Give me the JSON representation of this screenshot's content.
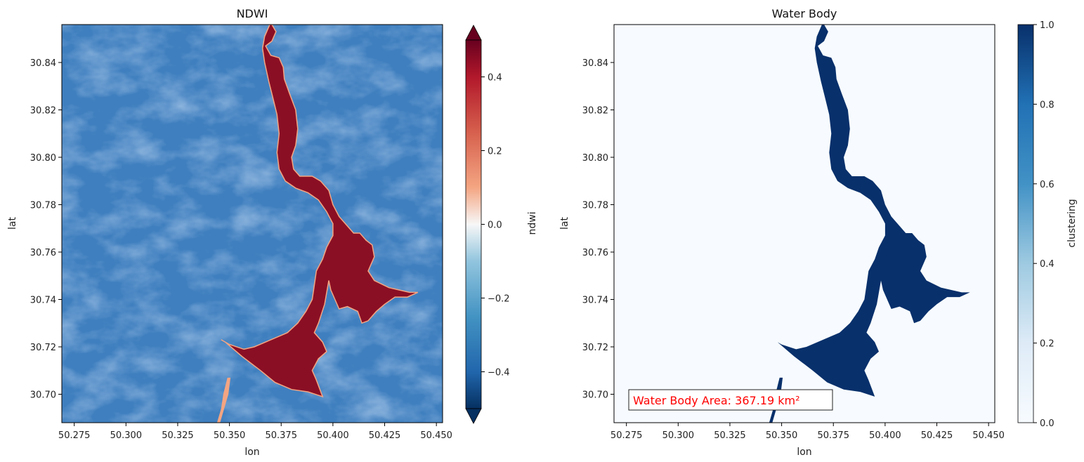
{
  "chart_data": [
    {
      "type": "heatmap",
      "title": "NDWI",
      "xlabel": "lon",
      "ylabel": "lat",
      "xlim": [
        50.269,
        50.453
      ],
      "ylim": [
        30.688,
        30.856
      ],
      "xticks": [
        50.275,
        50.3,
        50.325,
        50.35,
        50.375,
        50.4,
        50.425,
        50.45
      ],
      "xtick_labels": [
        "50.275",
        "50.300",
        "50.325",
        "50.350",
        "50.375",
        "50.400",
        "50.425",
        "50.450"
      ],
      "yticks": [
        30.7,
        30.72,
        30.74,
        30.76,
        30.78,
        30.8,
        30.82,
        30.84
      ],
      "ytick_labels": [
        "30.70",
        "30.72",
        "30.74",
        "30.76",
        "30.78",
        "30.80",
        "30.82",
        "30.84"
      ],
      "colormap": "RdBu",
      "colors": {
        "low": "#053061",
        "mid": "#f7f7f7",
        "high": "#67001f",
        "background": "#3f7fbf",
        "water": "#8b0f24"
      },
      "colorbar": {
        "label": "ndwi",
        "range": [
          -0.5,
          0.5
        ],
        "extend": "both",
        "ticks": [
          -0.4,
          -0.2,
          0.0,
          0.2,
          0.4
        ],
        "tick_labels": [
          "−0.4",
          "−0.2",
          "0.0",
          "0.2",
          "0.4"
        ]
      }
    },
    {
      "type": "heatmap",
      "title": "Water Body",
      "xlabel": "lon",
      "ylabel": "lat",
      "xlim": [
        50.269,
        50.453
      ],
      "ylim": [
        30.688,
        30.856
      ],
      "xticks": [
        50.275,
        50.3,
        50.325,
        50.35,
        50.375,
        50.4,
        50.425,
        50.45
      ],
      "xtick_labels": [
        "50.275",
        "50.300",
        "50.325",
        "50.350",
        "50.375",
        "50.400",
        "50.425",
        "50.450"
      ],
      "yticks": [
        30.7,
        30.72,
        30.74,
        30.76,
        30.78,
        30.8,
        30.82,
        30.84
      ],
      "ytick_labels": [
        "30.70",
        "30.72",
        "30.74",
        "30.76",
        "30.78",
        "30.80",
        "30.82",
        "30.84"
      ],
      "colormap": "Blues",
      "colors": {
        "low": "#f7fbff",
        "high": "#08306b",
        "background": "#f7fbff",
        "water": "#08306b"
      },
      "colorbar": {
        "label": "clustering",
        "range": [
          0.0,
          1.0
        ],
        "ticks": [
          0.0,
          0.2,
          0.4,
          0.6,
          0.8,
          1.0
        ],
        "tick_labels": [
          "0.0",
          "0.2",
          "0.4",
          "0.6",
          "0.8",
          "1.0"
        ]
      },
      "annotation": {
        "text": "Water Body Area: 367.19 km²",
        "color": "#ff0000"
      }
    }
  ],
  "water_body_outline": {
    "main_channel": [
      [
        50.3705,
        30.856
      ],
      [
        50.3725,
        30.853
      ],
      [
        50.3705,
        30.849
      ],
      [
        50.3675,
        30.847
      ],
      [
        50.37,
        30.843
      ],
      [
        50.374,
        30.842
      ],
      [
        50.376,
        30.838
      ],
      [
        50.3765,
        30.833
      ],
      [
        50.379,
        30.827
      ],
      [
        50.382,
        30.82
      ],
      [
        50.383,
        30.812
      ],
      [
        50.382,
        30.805
      ],
      [
        50.38,
        30.8
      ],
      [
        50.381,
        30.795
      ],
      [
        50.384,
        30.792
      ],
      [
        50.39,
        30.792
      ],
      [
        50.394,
        30.79
      ],
      [
        50.398,
        30.786
      ],
      [
        50.4,
        30.78
      ],
      [
        50.403,
        30.775
      ],
      [
        50.407,
        30.771
      ],
      [
        50.41,
        30.768
      ],
      [
        50.413,
        30.768
      ],
      [
        50.416,
        30.765
      ],
      [
        50.419,
        30.763
      ],
      [
        50.42,
        30.758
      ],
      [
        50.417,
        30.752
      ],
      [
        50.42,
        30.748
      ],
      [
        50.427,
        30.745
      ],
      [
        50.432,
        30.744
      ],
      [
        50.437,
        30.743
      ],
      [
        50.441,
        30.743
      ],
      [
        50.436,
        30.741
      ],
      [
        50.43,
        30.741
      ],
      [
        50.425,
        30.738
      ],
      [
        50.421,
        30.735
      ],
      [
        50.417,
        30.731
      ],
      [
        50.414,
        30.73
      ],
      [
        50.412,
        30.735
      ],
      [
        50.407,
        30.737
      ],
      [
        50.403,
        30.736
      ],
      [
        50.401,
        30.74
      ],
      [
        50.399,
        30.744
      ],
      [
        50.398,
        30.748
      ],
      [
        50.396,
        30.738
      ],
      [
        50.393,
        30.73
      ],
      [
        50.391,
        30.726
      ],
      [
        50.395,
        30.722
      ],
      [
        50.397,
        30.718
      ],
      [
        50.393,
        30.715
      ],
      [
        50.39,
        30.71
      ],
      [
        50.392,
        30.706
      ],
      [
        50.395,
        30.699
      ],
      [
        50.388,
        30.701
      ],
      [
        50.38,
        30.702
      ],
      [
        50.372,
        30.705
      ],
      [
        50.365,
        30.71
      ],
      [
        50.356,
        30.716
      ],
      [
        50.348,
        30.722
      ],
      [
        50.346,
        30.723
      ],
      [
        50.35,
        30.721
      ],
      [
        50.357,
        30.719
      ],
      [
        50.362,
        30.72
      ],
      [
        50.37,
        30.723
      ],
      [
        50.378,
        30.726
      ],
      [
        50.383,
        30.73
      ],
      [
        50.387,
        30.735
      ],
      [
        50.39,
        30.74
      ],
      [
        50.391,
        30.746
      ],
      [
        50.392,
        30.752
      ],
      [
        50.395,
        30.757
      ],
      [
        50.397,
        30.762
      ],
      [
        50.4,
        30.767
      ],
      [
        50.4,
        30.772
      ],
      [
        50.397,
        30.777
      ],
      [
        50.393,
        30.782
      ],
      [
        50.388,
        30.785
      ],
      [
        50.382,
        30.787
      ],
      [
        50.377,
        30.79
      ],
      [
        50.374,
        30.795
      ],
      [
        50.373,
        30.802
      ],
      [
        50.374,
        30.81
      ],
      [
        50.373,
        30.818
      ],
      [
        50.371,
        30.825
      ],
      [
        50.369,
        30.832
      ],
      [
        50.367,
        30.84
      ],
      [
        50.366,
        30.846
      ],
      [
        50.367,
        30.851
      ],
      [
        50.3695,
        30.856
      ]
    ],
    "south_stream": [
      [
        50.349,
        30.707
      ],
      [
        50.347,
        30.7
      ],
      [
        50.346,
        30.694
      ],
      [
        50.344,
        30.688
      ],
      [
        50.3455,
        30.688
      ],
      [
        50.3475,
        30.694
      ],
      [
        50.3495,
        30.7
      ],
      [
        50.3505,
        30.707
      ]
    ]
  }
}
